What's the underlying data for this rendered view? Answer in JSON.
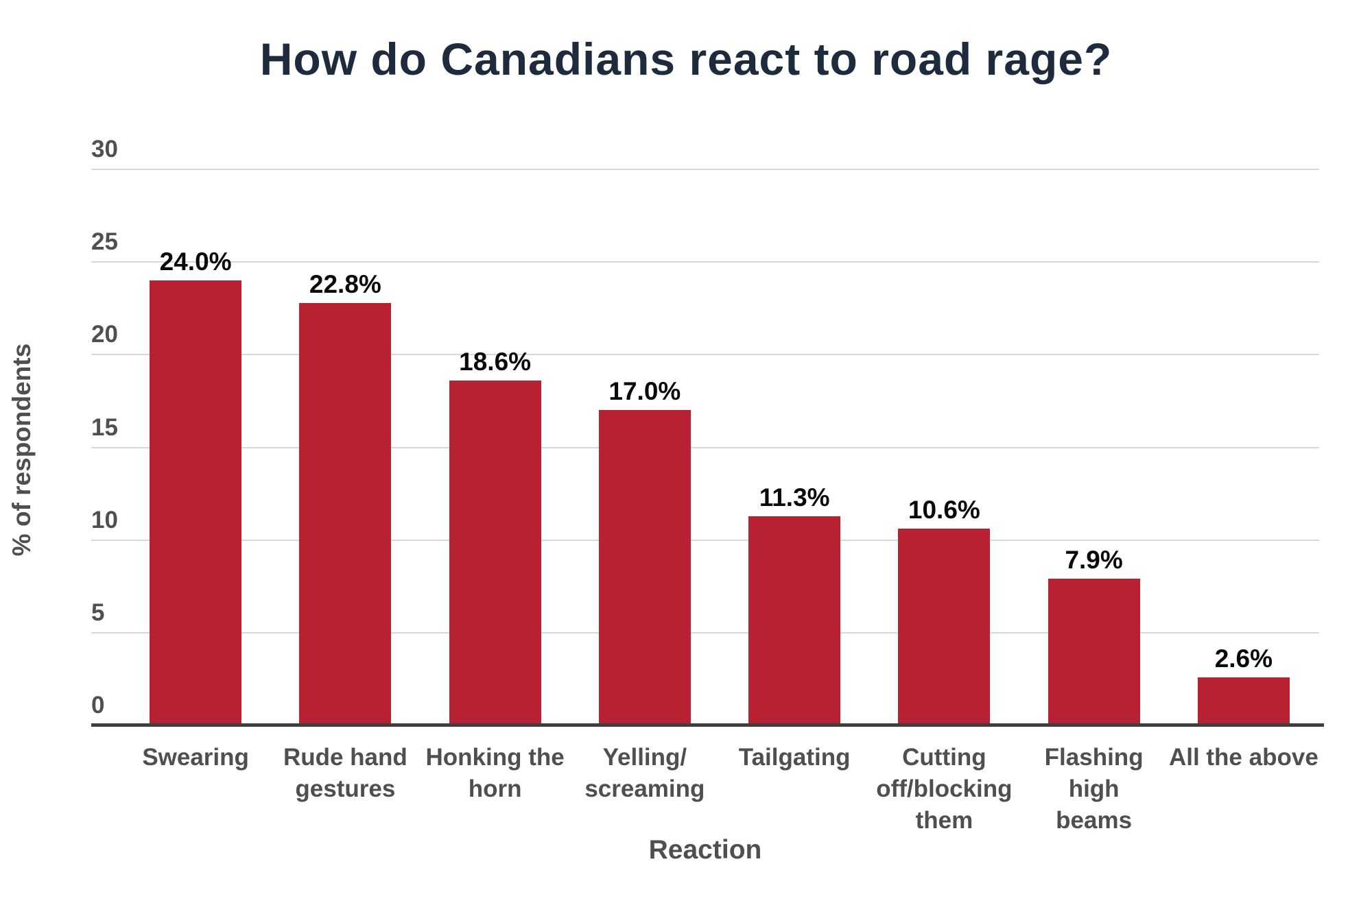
{
  "title": "How do Canadians react to road rage?",
  "chart_data": {
    "type": "bar",
    "title": "How do Canadians react to road rage?",
    "xlabel": "Reaction",
    "ylabel": "% of respondents",
    "ylim": [
      0,
      30
    ],
    "yticks": [
      0,
      5,
      10,
      15,
      20,
      25,
      30
    ],
    "grid": true,
    "legend": false,
    "bar_color": "#b82132",
    "categories": [
      "Swearing",
      "Rude hand\ngestures",
      "Honking the\nhorn",
      "Yelling/\nscreaming",
      "Tailgating",
      "Cutting\noff/blocking\nthem",
      "Flashing high\nbeams",
      "All the above"
    ],
    "values": [
      24.0,
      22.8,
      18.6,
      17.0,
      11.3,
      10.6,
      7.9,
      2.6
    ],
    "value_labels": [
      "24.0%",
      "22.8%",
      "18.6%",
      "17.0%",
      "11.3%",
      "10.6%",
      "7.9%",
      "2.6%"
    ]
  },
  "colors": {
    "bar": "#b82132",
    "title_text": "#1d2b3c",
    "axis_line": "#3f3f3f",
    "gridline": "#d8d8d8",
    "tick_text": "#4f4f4f",
    "value_text": "#0a0a0a"
  }
}
